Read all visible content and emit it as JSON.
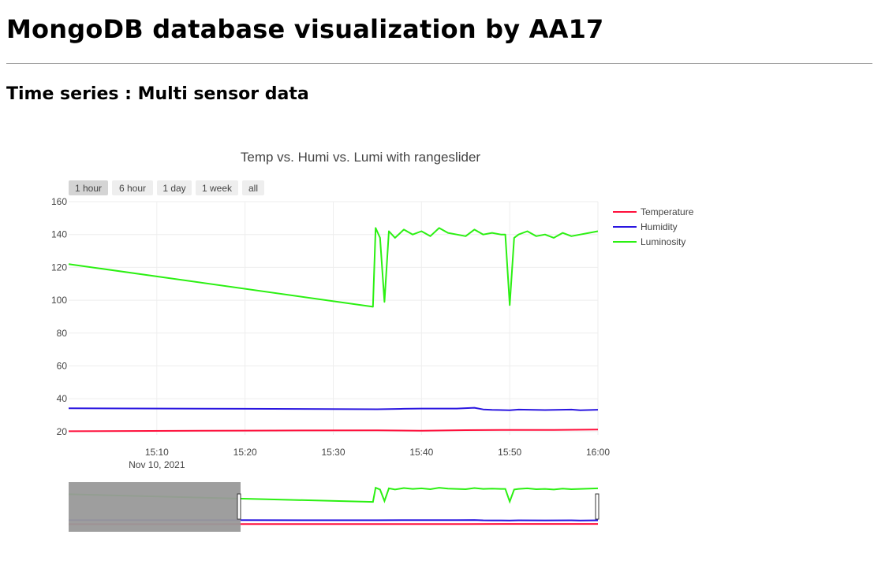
{
  "page": {
    "title": "MongoDB database visualization by AA17",
    "subtitle": "Time series : Multi sensor data"
  },
  "colors": {
    "temperature": "#ff0f3b",
    "humidity": "#2a16e0",
    "luminosity": "#2bf012",
    "grid": "#eeeeee",
    "rangeslider_mask": "#999999"
  },
  "chart_data": {
    "type": "line",
    "title": "Temp vs. Humi vs. Lumi with rangeslider",
    "range_buttons": [
      "1 hour",
      "6 hour",
      "1 day",
      "1 week",
      "all"
    ],
    "active_range_button": "1 hour",
    "xlabel": "",
    "ylabel": "",
    "x_range": [
      "2021-11-10 15:00",
      "2021-11-10 16:00"
    ],
    "x_ticks": [
      "15:10",
      "15:20",
      "15:30",
      "15:40",
      "15:50",
      "16:00"
    ],
    "x_tick_sublabel": "Nov 10, 2021",
    "ylim": [
      18,
      160
    ],
    "y_ticks": [
      20,
      40,
      60,
      80,
      100,
      120,
      140,
      160
    ],
    "grid": true,
    "legend_position": "top-right",
    "rangeslider": true,
    "rangeslider_visible_range": [
      "2021-11-10 15:00",
      "2021-11-10 16:00"
    ],
    "series": [
      {
        "name": "Temperature",
        "x": [
          "15:00",
          "15:20",
          "15:35",
          "15:40",
          "15:45",
          "15:50",
          "15:55",
          "16:00"
        ],
        "y": [
          20.2,
          20.6,
          20.8,
          20.5,
          20.9,
          21.0,
          21.0,
          21.2
        ]
      },
      {
        "name": "Humidity",
        "x": [
          "15:00",
          "15:20",
          "15:35",
          "15:38",
          "15:40",
          "15:44",
          "15:46",
          "15:47",
          "15:48",
          "15:50",
          "15:51",
          "15:54",
          "15:57",
          "15:58",
          "16:00"
        ],
        "y": [
          34.2,
          33.9,
          33.6,
          33.9,
          34.0,
          34.0,
          34.5,
          33.5,
          33.2,
          33.0,
          33.4,
          33.1,
          33.4,
          33.0,
          33.3
        ]
      },
      {
        "name": "Luminosity",
        "x": [
          "15:00",
          "15:34.5",
          "15:34.8",
          "15:35.3",
          "15:35.8",
          "15:36.3",
          "15:37",
          "15:38",
          "15:39",
          "15:40",
          "15:41",
          "15:42",
          "15:43",
          "15:44",
          "15:45",
          "15:46",
          "15:47",
          "15:48",
          "15:49",
          "15:49.5",
          "15:50",
          "15:50.5",
          "15:51",
          "15:52",
          "15:53",
          "15:54",
          "15:55",
          "15:56",
          "15:57",
          "15:58",
          "15:59",
          "16:00"
        ],
        "y": [
          122,
          96,
          144,
          138,
          99,
          142,
          138,
          143,
          140,
          142,
          139,
          144,
          141,
          140,
          139,
          143,
          140,
          141,
          140,
          140,
          97,
          138,
          140,
          142,
          139,
          140,
          138,
          141,
          139,
          140,
          141,
          142
        ]
      }
    ]
  }
}
